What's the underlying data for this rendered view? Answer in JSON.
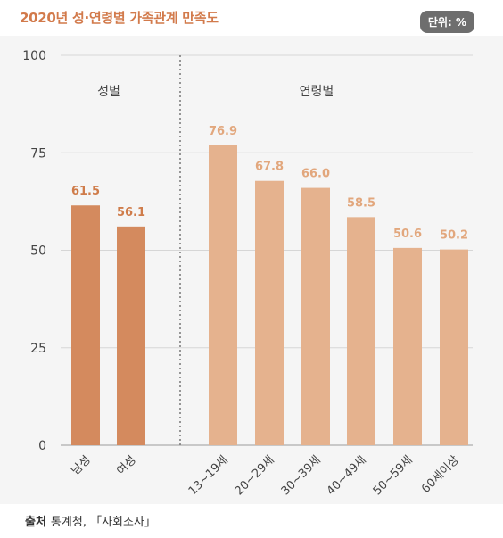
{
  "title": "2020년 성·연령별 가족관계 만족도",
  "unit_label": "단위: %",
  "source": {
    "label": "출처",
    "text": "통계청, 「사회조사」"
  },
  "colors": {
    "gender_bar": "#d48a5e",
    "age_bar": "#e5b28e",
    "gender_value": "#cf7c4a",
    "age_value": "#e2a77d"
  },
  "chart_data": {
    "type": "bar",
    "title": "2020년 성·연령별 가족관계 만족도",
    "ylim": [
      0,
      100
    ],
    "yticks": [
      0,
      25,
      50,
      75,
      100
    ],
    "grid": true,
    "groups": [
      {
        "label": "성별",
        "categories": [
          "남성",
          "여성"
        ],
        "values": [
          61.5,
          56.1
        ],
        "value_labels": [
          "61.5",
          "56.1"
        ]
      },
      {
        "label": "연령별",
        "categories": [
          "13~19세",
          "20~29세",
          "30~39세",
          "40~49세",
          "50~59세",
          "60세이상"
        ],
        "values": [
          76.9,
          67.8,
          66.0,
          58.5,
          50.6,
          50.2
        ],
        "value_labels": [
          "76.9",
          "67.8",
          "66.0",
          "58.5",
          "50.6",
          "50.2"
        ]
      }
    ]
  }
}
